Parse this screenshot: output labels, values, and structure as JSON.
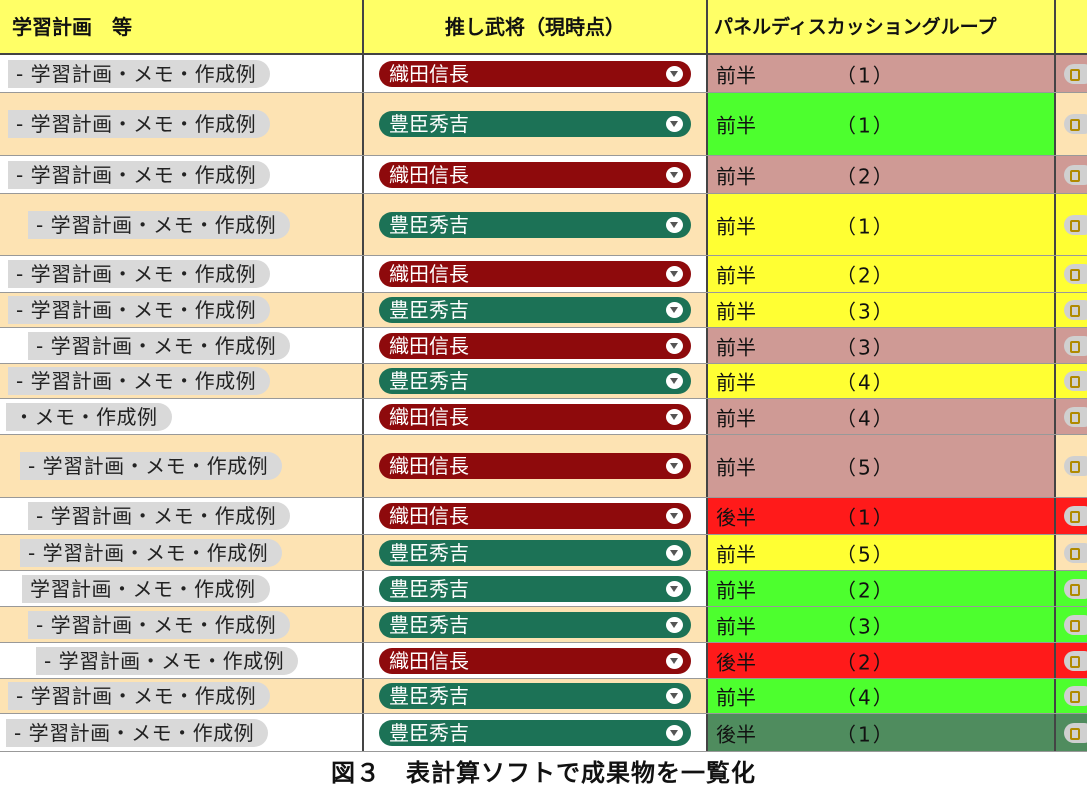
{
  "header": {
    "col1": "学習計画　等",
    "col2": "推し武将（現時点）",
    "col3": "パネルディスカッショングループ"
  },
  "colors": {
    "header_bg": "#ffff66",
    "oda_pill": "#8e0a0c",
    "toyotomi_pill": "#1c7256",
    "zenhan_pink": "#cf9a95",
    "bright_green": "#4dff2e",
    "yellow": "#ffff33",
    "red": "#ff1a1a",
    "dark_green": "#4f8c5e",
    "row_white": "#ffffff",
    "row_peach": "#fde3b3"
  },
  "rows": [
    {
      "memo": "- 学習計画・メモ・作成例",
      "busho": "織田信長",
      "half": "前半",
      "group": "（1）"
    },
    {
      "memo": "- 学習計画・メモ・作成例",
      "busho": "豊臣秀吉",
      "half": "前半",
      "group": "（1）"
    },
    {
      "memo": "- 学習計画・メモ・作成例",
      "busho": "織田信長",
      "half": "前半",
      "group": "（2）"
    },
    {
      "memo": "- 学習計画・メモ・作成例",
      "busho": "豊臣秀吉",
      "half": "前半",
      "group": "（1）"
    },
    {
      "memo": "- 学習計画・メモ・作成例",
      "busho": "織田信長",
      "half": "前半",
      "group": "（2）"
    },
    {
      "memo": "- 学習計画・メモ・作成例",
      "busho": "豊臣秀吉",
      "half": "前半",
      "group": "（3）"
    },
    {
      "memo": "- 学習計画・メモ・作成例",
      "busho": "織田信長",
      "half": "前半",
      "group": "（3）"
    },
    {
      "memo": "- 学習計画・メモ・作成例",
      "busho": "豊臣秀吉",
      "half": "前半",
      "group": "（4）"
    },
    {
      "memo": "・メモ・作成例",
      "busho": "織田信長",
      "half": "前半",
      "group": "（4）"
    },
    {
      "memo": "- 学習計画・メモ・作成例",
      "busho": "織田信長",
      "half": "前半",
      "group": "（5）"
    },
    {
      "memo": "- 学習計画・メモ・作成例",
      "busho": "織田信長",
      "half": "後半",
      "group": "（1）"
    },
    {
      "memo": "- 学習計画・メモ・作成例",
      "busho": "豊臣秀吉",
      "half": "前半",
      "group": "（5）"
    },
    {
      "memo": "学習計画・メモ・作成例",
      "busho": "豊臣秀吉",
      "half": "前半",
      "group": "（2）"
    },
    {
      "memo": "- 学習計画・メモ・作成例",
      "busho": "豊臣秀吉",
      "half": "前半",
      "group": "（3）"
    },
    {
      "memo": "- 学習計画・メモ・作成例",
      "busho": "織田信長",
      "half": "後半",
      "group": "（2）"
    },
    {
      "memo": "- 学習計画・メモ・作成例",
      "busho": "豊臣秀吉",
      "half": "前半",
      "group": "（4）"
    },
    {
      "memo": "- 学習計画・メモ・作成例",
      "busho": "豊臣秀吉",
      "half": "後半",
      "group": "（1）"
    }
  ],
  "caption": "図３　表計算ソフトで成果物を一覧化"
}
